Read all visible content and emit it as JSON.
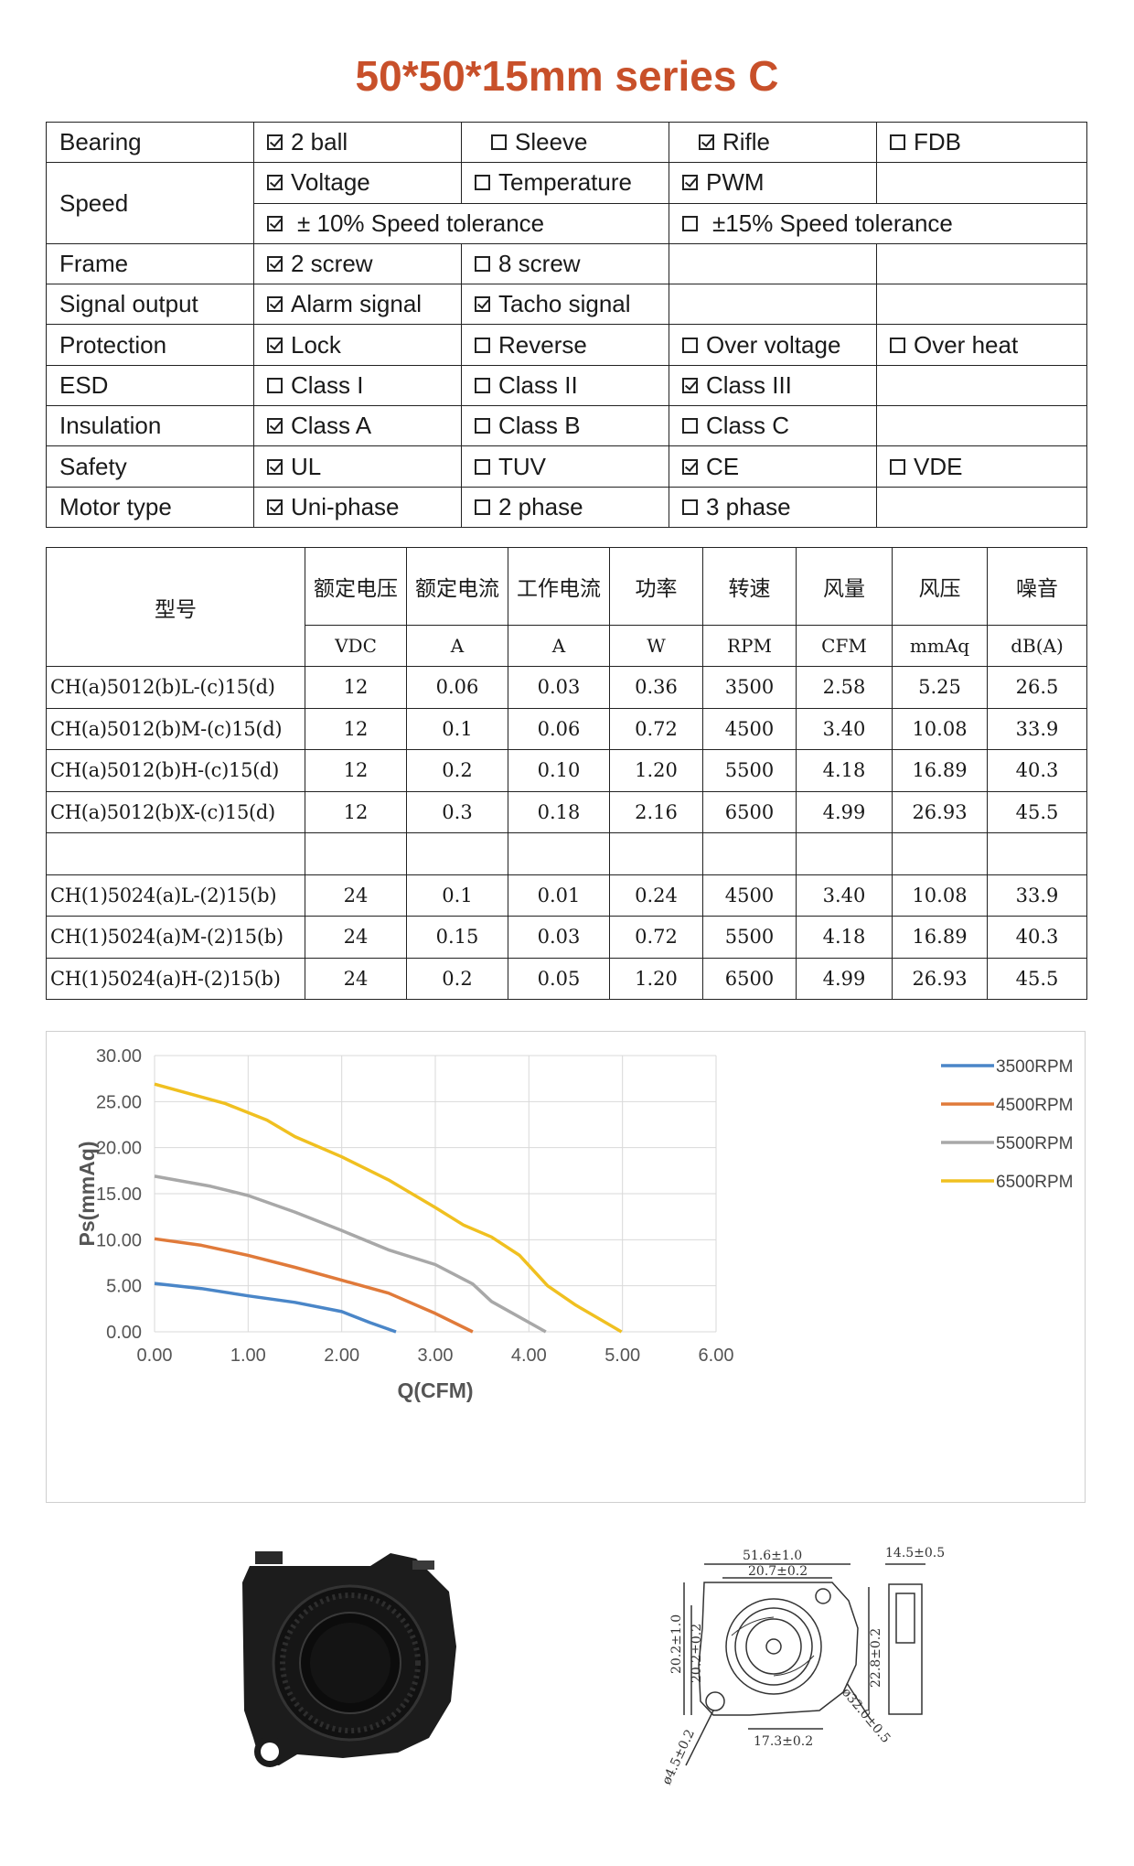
{
  "title": "50*50*15mm series C",
  "features": {
    "bearing": {
      "label": "Bearing",
      "options": [
        {
          "text": "2 ball",
          "checked": true
        },
        {
          "text": "Sleeve",
          "checked": false
        },
        {
          "text": "Rifle",
          "checked": true
        },
        {
          "text": "FDB",
          "checked": false
        }
      ]
    },
    "speed": {
      "label": "Speed",
      "row1": [
        {
          "text": "Voltage",
          "checked": true
        },
        {
          "text": "Temperature",
          "checked": false
        },
        {
          "text": "PWM",
          "checked": true
        }
      ],
      "row2": [
        {
          "text": "± 10% Speed tolerance",
          "checked": true
        },
        {
          "text": "±15% Speed tolerance",
          "checked": false
        }
      ]
    },
    "frame": {
      "label": "Frame",
      "options": [
        {
          "text": "2 screw",
          "checked": true
        },
        {
          "text": "8 screw",
          "checked": false
        }
      ]
    },
    "signal": {
      "label": "Signal output",
      "options": [
        {
          "text": "Alarm signal",
          "checked": true
        },
        {
          "text": "Tacho signal",
          "checked": true
        }
      ]
    },
    "protection": {
      "label": "Protection",
      "options": [
        {
          "text": "Lock",
          "checked": true
        },
        {
          "text": "Reverse",
          "checked": false
        },
        {
          "text": "Over voltage",
          "checked": false
        },
        {
          "text": "Over heat",
          "checked": false
        }
      ]
    },
    "esd": {
      "label": "ESD",
      "options": [
        {
          "text": "Class I",
          "checked": false
        },
        {
          "text": "Class II",
          "checked": false
        },
        {
          "text": "Class III",
          "checked": true
        }
      ]
    },
    "insulation": {
      "label": "Insulation",
      "options": [
        {
          "text": "Class A",
          "checked": true
        },
        {
          "text": "Class B",
          "checked": false
        },
        {
          "text": "Class C",
          "checked": false
        }
      ]
    },
    "safety": {
      "label": "Safety",
      "options": [
        {
          "text": "UL",
          "checked": true
        },
        {
          "text": "TUV",
          "checked": false
        },
        {
          "text": "CE",
          "checked": true
        },
        {
          "text": "VDE",
          "checked": false
        }
      ]
    },
    "motor": {
      "label": "Motor type",
      "options": [
        {
          "text": "Uni-phase",
          "checked": true
        },
        {
          "text": "2 phase",
          "checked": false
        },
        {
          "text": "3 phase",
          "checked": false
        }
      ]
    }
  },
  "specs": {
    "model_header": "型号",
    "headers": [
      "额定电压",
      "额定电流",
      "工作电流",
      "功率",
      "转速",
      "风量",
      "风压",
      "噪音"
    ],
    "units": [
      "VDC",
      "A",
      "A",
      "W",
      "RPM",
      "CFM",
      "mmAq",
      "dB(A)"
    ],
    "rows": [
      [
        "CH(a)5012(b)L-(c)15(d)",
        "12",
        "0.06",
        "0.03",
        "0.36",
        "3500",
        "2.58",
        "5.25",
        "26.5"
      ],
      [
        "CH(a)5012(b)M-(c)15(d)",
        "12",
        "0.1",
        "0.06",
        "0.72",
        "4500",
        "3.40",
        "10.08",
        "33.9"
      ],
      [
        "CH(a)5012(b)H-(c)15(d)",
        "12",
        "0.2",
        "0.10",
        "1.20",
        "5500",
        "4.18",
        "16.89",
        "40.3"
      ],
      [
        "CH(a)5012(b)X-(c)15(d)",
        "12",
        "0.3",
        "0.18",
        "2.16",
        "6500",
        "4.99",
        "26.93",
        "45.5"
      ],
      [
        "",
        "",
        "",
        "",
        "",
        "",
        "",
        "",
        ""
      ],
      [
        "CH(1)5024(a)L-(2)15(b)",
        "24",
        "0.1",
        "0.01",
        "0.24",
        "4500",
        "3.40",
        "10.08",
        "33.9"
      ],
      [
        "CH(1)5024(a)M-(2)15(b)",
        "24",
        "0.15",
        "0.03",
        "0.72",
        "5500",
        "4.18",
        "16.89",
        "40.3"
      ],
      [
        "CH(1)5024(a)H-(2)15(b)",
        "24",
        "0.2",
        "0.05",
        "1.20",
        "6500",
        "4.99",
        "26.93",
        "45.5"
      ]
    ]
  },
  "chart_data": {
    "type": "line",
    "title": "",
    "xlabel": "Q(CFM)",
    "ylabel": "Ps(mmAq)",
    "xlim": [
      0,
      6
    ],
    "ylim": [
      0,
      30
    ],
    "xticks": [
      "0.00",
      "1.00",
      "2.00",
      "3.00",
      "4.00",
      "5.00",
      "6.00"
    ],
    "yticks": [
      "0.00",
      "5.00",
      "10.00",
      "15.00",
      "20.00",
      "25.00",
      "30.00"
    ],
    "grid": true,
    "legend": "right",
    "series": [
      {
        "name": "3500RPM",
        "color": "#4a86c8",
        "points": [
          [
            0,
            5.25
          ],
          [
            0.5,
            4.7
          ],
          [
            1.0,
            3.9
          ],
          [
            1.5,
            3.2
          ],
          [
            2.0,
            2.2
          ],
          [
            2.3,
            1.0
          ],
          [
            2.58,
            0
          ]
        ]
      },
      {
        "name": "4500RPM",
        "color": "#e07a3a",
        "points": [
          [
            0,
            10.1
          ],
          [
            0.5,
            9.4
          ],
          [
            1.0,
            8.3
          ],
          [
            1.5,
            7.0
          ],
          [
            2.0,
            5.6
          ],
          [
            2.5,
            4.2
          ],
          [
            3.0,
            2.0
          ],
          [
            3.4,
            0
          ]
        ]
      },
      {
        "name": "5500RPM",
        "color": "#a8a8a8",
        "points": [
          [
            0,
            16.9
          ],
          [
            0.6,
            15.8
          ],
          [
            1.0,
            14.8
          ],
          [
            1.5,
            13.0
          ],
          [
            2.0,
            11.0
          ],
          [
            2.5,
            8.9
          ],
          [
            3.0,
            7.3
          ],
          [
            3.4,
            5.2
          ],
          [
            3.6,
            3.3
          ],
          [
            4.18,
            0
          ]
        ]
      },
      {
        "name": "6500RPM",
        "color": "#f0c020",
        "points": [
          [
            0,
            26.9
          ],
          [
            0.75,
            24.8
          ],
          [
            1.2,
            23.0
          ],
          [
            1.5,
            21.2
          ],
          [
            2.0,
            19.0
          ],
          [
            2.5,
            16.5
          ],
          [
            3.0,
            13.5
          ],
          [
            3.3,
            11.6
          ],
          [
            3.6,
            10.3
          ],
          [
            3.9,
            8.3
          ],
          [
            4.2,
            5.0
          ],
          [
            4.5,
            2.9
          ],
          [
            4.99,
            0
          ]
        ]
      }
    ]
  },
  "drawing": {
    "dim_width": "51.6±1.0",
    "dim_depth": "14.5±0.5",
    "dim_inner": "20.7±0.2",
    "dim_h1": "20.2±1.0",
    "dim_h2": "20.2±0.2",
    "dim_right": "22.8±0.2",
    "dim_diam": "ø32.0±0.5",
    "dim_bottom": "17.3±0.2",
    "dim_hole": "ø4.5±0.2"
  },
  "colors": {
    "title": "#c8502a",
    "grid": "#d9d9d9"
  }
}
